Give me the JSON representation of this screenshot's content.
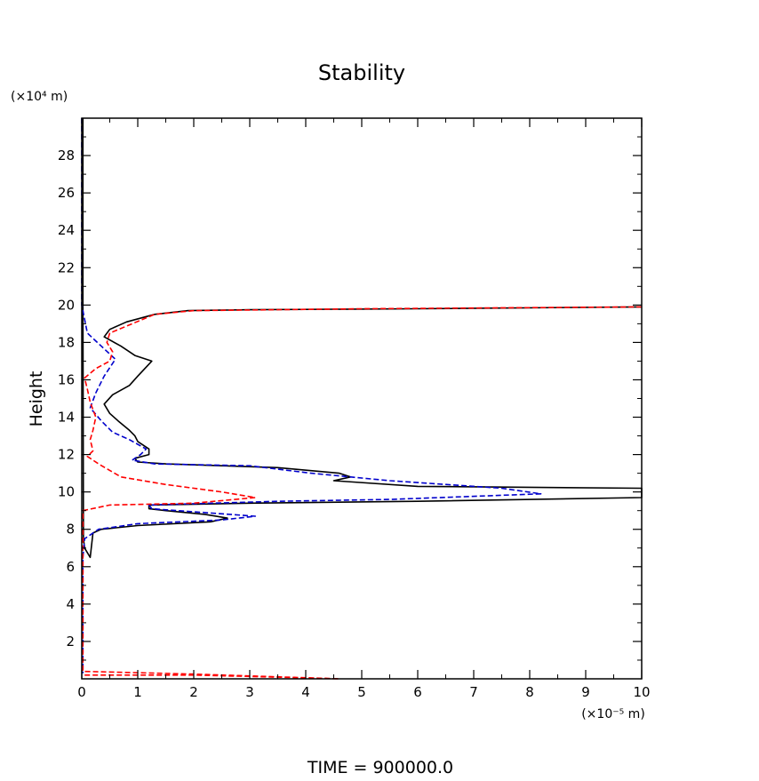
{
  "chart_data": {
    "type": "line",
    "title": "Stability",
    "ylabel": "Height",
    "y_unit_label": "(×10⁴ m)",
    "x_unit_label": "(×10⁻⁵ m)",
    "footer": "TIME  =  900000.0",
    "xlim": [
      0,
      10
    ],
    "ylim": [
      0,
      30
    ],
    "x_ticks": [
      0,
      1,
      2,
      3,
      4,
      5,
      6,
      7,
      8,
      9,
      10
    ],
    "y_ticks": [
      2,
      4,
      6,
      8,
      10,
      12,
      14,
      16,
      18,
      20,
      22,
      24,
      26,
      28
    ],
    "grid": false,
    "series": [
      {
        "color": "#000000",
        "dash": "solid",
        "points": [
          [
            0.02,
            30
          ],
          [
            0.02,
            20
          ],
          [
            0.03,
            7.5
          ],
          [
            0.05,
            7.0
          ],
          [
            0.15,
            6.5
          ],
          [
            0.2,
            7.8
          ],
          [
            0.35,
            8.0
          ],
          [
            1.0,
            8.2
          ],
          [
            2.3,
            8.4
          ],
          [
            2.6,
            8.6
          ],
          [
            2.2,
            8.8
          ],
          [
            1.5,
            9.0
          ],
          [
            1.2,
            9.1
          ],
          [
            1.2,
            9.3
          ],
          [
            3.0,
            9.4
          ],
          [
            6.0,
            9.5
          ],
          [
            10,
            9.7
          ],
          [
            10,
            10.2
          ],
          [
            6.0,
            10.3
          ],
          [
            4.5,
            10.6
          ],
          [
            4.8,
            10.8
          ],
          [
            4.6,
            11.0
          ],
          [
            3.5,
            11.3
          ],
          [
            2.5,
            11.4
          ],
          [
            1.5,
            11.5
          ],
          [
            1.0,
            11.6
          ],
          [
            0.95,
            11.8
          ],
          [
            1.2,
            12.0
          ],
          [
            1.2,
            12.3
          ],
          [
            1.0,
            12.7
          ],
          [
            0.95,
            13.0
          ],
          [
            0.85,
            13.3
          ],
          [
            0.65,
            13.8
          ],
          [
            0.5,
            14.2
          ],
          [
            0.4,
            14.7
          ],
          [
            0.55,
            15.2
          ],
          [
            0.85,
            15.7
          ],
          [
            1.0,
            16.2
          ],
          [
            1.25,
            17.0
          ],
          [
            0.95,
            17.3
          ],
          [
            0.7,
            17.8
          ],
          [
            0.4,
            18.3
          ],
          [
            0.5,
            18.7
          ],
          [
            0.8,
            19.1
          ],
          [
            1.3,
            19.5
          ],
          [
            1.9,
            19.7
          ],
          [
            3.0,
            19.75
          ],
          [
            6.0,
            19.8
          ],
          [
            10,
            19.9
          ]
        ]
      },
      {
        "color": "#0000cc",
        "dash": "dashed",
        "points": [
          [
            0.0,
            30
          ],
          [
            0.0,
            20
          ],
          [
            0.1,
            18.5
          ],
          [
            0.35,
            17.8
          ],
          [
            0.6,
            17.1
          ],
          [
            0.4,
            16.2
          ],
          [
            0.25,
            15.3
          ],
          [
            0.15,
            14.5
          ],
          [
            0.35,
            13.8
          ],
          [
            0.55,
            13.2
          ],
          [
            0.85,
            12.8
          ],
          [
            1.15,
            12.3
          ],
          [
            1.05,
            12.0
          ],
          [
            0.9,
            11.7
          ],
          [
            1.3,
            11.5
          ],
          [
            3.0,
            11.4
          ],
          [
            4.1,
            11.0
          ],
          [
            5.5,
            10.6
          ],
          [
            7.5,
            10.2
          ],
          [
            8.2,
            9.9
          ],
          [
            5.5,
            9.6
          ],
          [
            3.5,
            9.5
          ],
          [
            1.2,
            9.3
          ],
          [
            1.25,
            9.1
          ],
          [
            3.1,
            8.7
          ],
          [
            2.5,
            8.5
          ],
          [
            1.0,
            8.3
          ],
          [
            0.3,
            8.0
          ],
          [
            0.05,
            7.5
          ],
          [
            0.02,
            6.5
          ],
          [
            0.02,
            0.3
          ]
        ]
      },
      {
        "color": "#ff0000",
        "dash": "dashed",
        "points": [
          [
            0.05,
            0.2
          ],
          [
            2.0,
            0.2
          ],
          [
            4.0,
            0.05
          ],
          [
            4.6,
            0.0
          ],
          [
            2.0,
            0.25
          ],
          [
            0.02,
            0.4
          ],
          [
            0.02,
            9.0
          ],
          [
            0.5,
            9.3
          ],
          [
            2.0,
            9.4
          ],
          [
            3.1,
            9.7
          ],
          [
            2.5,
            10.0
          ],
          [
            1.5,
            10.4
          ],
          [
            0.7,
            10.8
          ],
          [
            0.3,
            11.5
          ],
          [
            0.1,
            11.9
          ],
          [
            0.2,
            12.2
          ],
          [
            0.15,
            12.8
          ],
          [
            0.2,
            13.3
          ],
          [
            0.25,
            14.0
          ],
          [
            0.15,
            14.8
          ],
          [
            0.1,
            15.5
          ],
          [
            0.05,
            16.1
          ],
          [
            0.25,
            16.6
          ],
          [
            0.5,
            17.0
          ],
          [
            0.55,
            17.5
          ],
          [
            0.45,
            18.0
          ],
          [
            0.5,
            18.5
          ],
          [
            0.9,
            19.0
          ],
          [
            1.3,
            19.5
          ],
          [
            2.0,
            19.7
          ],
          [
            5.0,
            19.8
          ],
          [
            10,
            19.9
          ]
        ]
      }
    ]
  }
}
